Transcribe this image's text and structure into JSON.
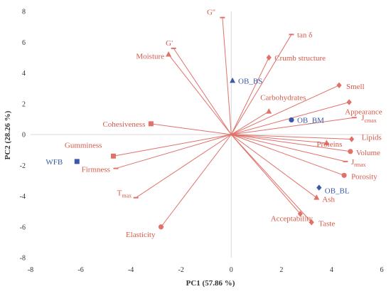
{
  "chart_data": {
    "type": "scatter",
    "title": "",
    "xlabel": "PC1 (57.86 %)",
    "ylabel": "PC2 (28.26 %)",
    "xlim": [
      -8,
      6
    ],
    "ylim": [
      -8,
      8
    ],
    "x_ticks": [
      -8,
      -6,
      -4,
      -2,
      0,
      2,
      4,
      6
    ],
    "y_ticks": [
      -8,
      -6,
      -4,
      -2,
      0,
      2,
      4,
      6,
      8
    ],
    "grid": false,
    "colors": {
      "loading": "#e0726a",
      "label": "#d45a4a",
      "sample": "#3a5aa8",
      "axis": "#d8d8d8",
      "tick": "#333333"
    },
    "loadings": [
      {
        "label": "G'",
        "x": -2.3,
        "y": 5.6,
        "marker": "dash"
      },
      {
        "label": "G''",
        "x": -0.35,
        "y": 7.6,
        "marker": "dash"
      },
      {
        "label": "Moisture",
        "x": -2.5,
        "y": 5.2,
        "marker": "triangle"
      },
      {
        "label": "tan δ",
        "x": 2.4,
        "y": 6.5,
        "marker": "dash"
      },
      {
        "label": "Crumb structure",
        "x": 1.5,
        "y": 5.0,
        "marker": "diamond"
      },
      {
        "label": "Smell",
        "x": 4.3,
        "y": 3.2,
        "marker": "diamond"
      },
      {
        "label": "Appearance",
        "x": 4.7,
        "y": 2.1,
        "marker": "diamond"
      },
      {
        "label": "Carbohydrates",
        "x": 1.5,
        "y": 1.5,
        "marker": "triangle"
      },
      {
        "label": "Jcmax",
        "x": 4.9,
        "y": 1.1,
        "marker": "dash"
      },
      {
        "label": "Lipids",
        "x": 4.8,
        "y": -0.3,
        "marker": "diamond"
      },
      {
        "label": "Proteins",
        "x": 3.8,
        "y": -0.55,
        "marker": "triangle"
      },
      {
        "label": "Volume",
        "x": 4.75,
        "y": -1.1,
        "marker": "circle"
      },
      {
        "label": "Jrmax",
        "x": 4.55,
        "y": -1.75,
        "marker": "dash"
      },
      {
        "label": "Porosity",
        "x": 4.5,
        "y": -2.65,
        "marker": "circle"
      },
      {
        "label": "Ash",
        "x": 3.4,
        "y": -4.1,
        "marker": "triangle"
      },
      {
        "label": "Taste",
        "x": 3.2,
        "y": -5.7,
        "marker": "diamond"
      },
      {
        "label": "Acceptability",
        "x": 2.75,
        "y": -5.15,
        "marker": "diamond"
      },
      {
        "label": "Cohesiveness",
        "x": -3.2,
        "y": 0.7,
        "marker": "square"
      },
      {
        "label": "Gumminess",
        "x": -4.7,
        "y": -1.4,
        "marker": "square"
      },
      {
        "label": "Firmness",
        "x": -4.6,
        "y": -2.2,
        "marker": "dash"
      },
      {
        "label": "Tmax",
        "x": -3.8,
        "y": -4.1,
        "marker": "dash"
      },
      {
        "label": "Elasticity",
        "x": -2.8,
        "y": -6.0,
        "marker": "circle"
      }
    ],
    "samples": [
      {
        "label": "OB_BS",
        "x": 0.05,
        "y": 3.5,
        "marker": "triangle"
      },
      {
        "label": "OB_BM",
        "x": 2.4,
        "y": 0.95,
        "marker": "circle"
      },
      {
        "label": "OB_BL",
        "x": 3.5,
        "y": -3.45,
        "marker": "diamond"
      },
      {
        "label": "WFB",
        "x": -6.15,
        "y": -1.75,
        "marker": "square"
      }
    ]
  }
}
